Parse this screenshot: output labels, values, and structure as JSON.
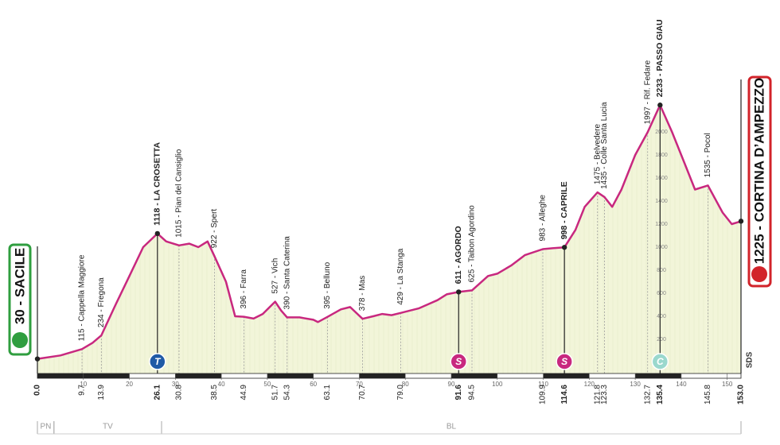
{
  "chart_data": {
    "type": "area",
    "xlim": [
      0,
      153
    ],
    "ylim": [
      0,
      3000
    ],
    "xticks": [
      10,
      20,
      30,
      40,
      50,
      60,
      70,
      80,
      90,
      100,
      110,
      120,
      130,
      140,
      150
    ],
    "yticks": [
      200,
      400,
      600,
      800,
      1000,
      1200,
      1400,
      1600,
      1800,
      2000
    ],
    "color": "#c8287f",
    "fill": "#f2f5d9",
    "x": [
      0,
      5,
      9.7,
      12,
      13.9,
      17,
      20,
      23,
      26.1,
      28,
      30.8,
      33,
      35,
      37,
      38.5,
      41,
      43,
      44.9,
      47,
      49,
      51.7,
      53,
      54.3,
      57,
      60,
      61,
      63.1,
      66,
      68,
      70.7,
      73,
      75,
      77,
      79,
      83,
      87,
      89,
      91.6,
      94.5,
      98,
      100,
      103,
      106,
      109.9,
      112,
      114.6,
      117,
      119,
      121.8,
      123.3,
      125,
      127,
      130,
      132.7,
      135.4,
      138,
      141,
      143,
      145.8,
      149,
      151,
      153
    ],
    "values": [
      30,
      60,
      115,
      170,
      234,
      500,
      750,
      1000,
      1118,
      1050,
      1015,
      1030,
      1000,
      1050,
      922,
      700,
      400,
      396,
      380,
      420,
      527,
      450,
      390,
      390,
      370,
      350,
      395,
      460,
      480,
      378,
      400,
      420,
      410,
      429,
      470,
      540,
      590,
      611,
      625,
      750,
      770,
      840,
      930,
      983,
      990,
      998,
      1150,
      1350,
      1475,
      1435,
      1350,
      1500,
      1800,
      1997,
      2233,
      2000,
      1700,
      1500,
      1535,
      1300,
      1200,
      1225
    ],
    "waypoints": [
      {
        "km": {
          "value": 0,
          "label": "0.0"
        },
        "alt": 30,
        "label": "30 - SACILE",
        "bold": true,
        "kind": "start"
      },
      {
        "km": 9.7,
        "alt": 115,
        "label": "115 - Cappella Maggiore"
      },
      {
        "km": 13.9,
        "alt": 234,
        "label": "234 - Fregona"
      },
      {
        "km": 26.1,
        "alt": 1118,
        "label": "1118 - LA CROSETTA",
        "bold": true,
        "icon": "T",
        "icon_color": "#1f5aa6"
      },
      {
        "km": 30.8,
        "alt": 1015,
        "label": "1015 - Pian del Cansiglio"
      },
      {
        "km": 38.5,
        "alt": 922,
        "label": "922 - Spert"
      },
      {
        "km": 44.9,
        "alt": 396,
        "label": "396 - Farra"
      },
      {
        "km": 51.7,
        "alt": 527,
        "label": "527 - Vich"
      },
      {
        "km": 54.3,
        "alt": 390,
        "label": "390 - Santa Caterina"
      },
      {
        "km": 63.1,
        "alt": 395,
        "label": "395 - Belluno"
      },
      {
        "km": 70.7,
        "alt": 378,
        "label": "378 - Mas"
      },
      {
        "km": {
          "value": 79,
          "label": "79.0"
        },
        "alt": 429,
        "label": "429 - La Stanga"
      },
      {
        "km": 91.6,
        "alt": 611,
        "label": "611 - AGORDO",
        "bold": true,
        "icon": "S",
        "icon_color": "#c8287f"
      },
      {
        "km": 94.5,
        "alt": 625,
        "label": "625 - Taibon Agordino"
      },
      {
        "km": 109.9,
        "alt": 983,
        "label": "983 - Alleghe"
      },
      {
        "km": 114.6,
        "alt": 998,
        "label": "998 - CAPRILE",
        "bold": true,
        "icon": "S",
        "icon_color": "#c8287f"
      },
      {
        "km": 121.8,
        "alt": 1475,
        "label": "1475 - Belvedere"
      },
      {
        "km": 123.3,
        "alt": 1435,
        "label": "1435 - Colle Santa Lucia"
      },
      {
        "km": 132.7,
        "alt": 1997,
        "label": "1997 - Rif. Fedare"
      },
      {
        "km": 135.4,
        "alt": 2233,
        "label": "2233 - PASSO GIAU",
        "bold": true,
        "icon": "C",
        "icon_color": "#9ad8cd"
      },
      {
        "km": 145.8,
        "alt": 1535,
        "label": "1535 - Pocol"
      },
      {
        "km": {
          "value": 153,
          "label": "153.0"
        },
        "alt": 1225,
        "label": "1225 - CORTINA D’AMPEZZO",
        "bold": true,
        "kind": "finish"
      }
    ],
    "regions": [
      {
        "name": "PN",
        "start": 0,
        "end": 3.6
      },
      {
        "name": "TV",
        "start": 3.6,
        "end": 27
      },
      {
        "name": "BL",
        "start": 27,
        "end": 153
      }
    ],
    "logo": "SDS"
  }
}
